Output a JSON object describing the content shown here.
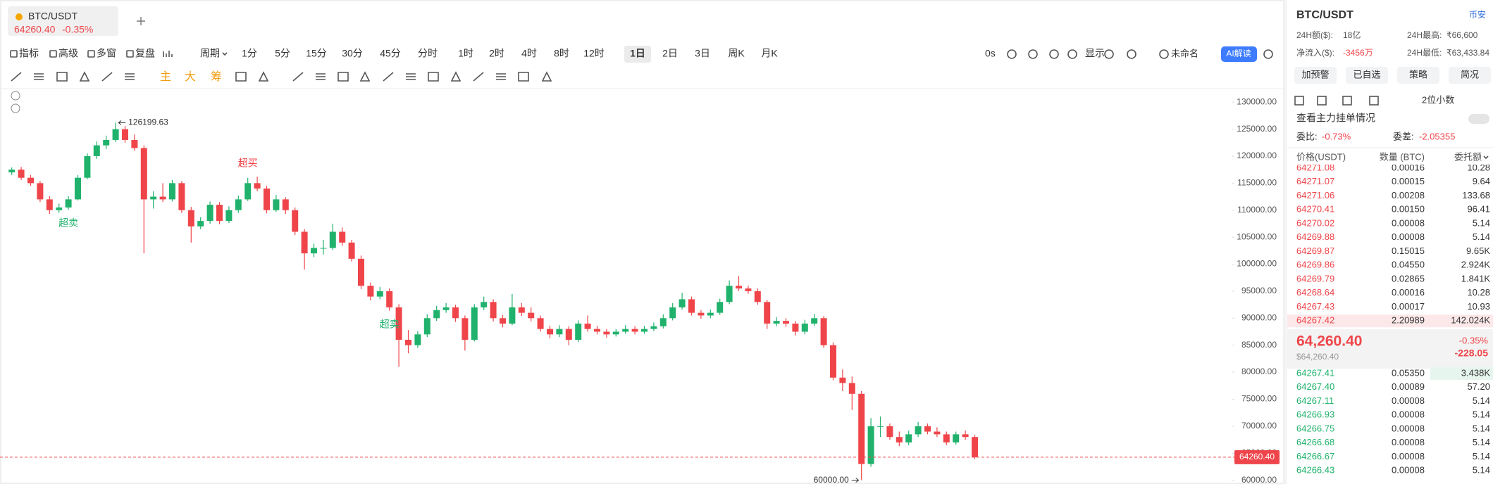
{
  "tab": {
    "symbol": "BTC/USDT",
    "price": "64260.40",
    "change": "-0.35%"
  },
  "toolbar": {
    "tools": [
      "指标",
      "高级",
      "多窗",
      "复盘"
    ],
    "period_label": "周期",
    "periods": [
      "1分",
      "5分",
      "15分",
      "30分",
      "45分",
      "分时",
      "1时",
      "2时",
      "4时",
      "8时",
      "12时",
      "1日",
      "2日",
      "3日",
      "周K",
      "月K"
    ],
    "active_period": 11,
    "timer": "0s",
    "display": "显示",
    "layout_name": "未命名",
    "ai": "AI解读",
    "indicators": [
      "主",
      "大",
      "筹"
    ]
  },
  "chart_data": {
    "type": "candlestick",
    "up_color": "#20b26c",
    "down_color": "#ef454a",
    "grid": false,
    "ylim": [
      59300,
      132500
    ],
    "yticks": [
      {
        "value": 60000,
        "label": "60000.00"
      },
      {
        "value": 65000,
        "label": "65000.00"
      },
      {
        "value": 70000,
        "label": "70000.00"
      },
      {
        "value": 75000,
        "label": "75000.00"
      },
      {
        "value": 80000,
        "label": "80000.00"
      },
      {
        "value": 85000,
        "label": "85000.00"
      },
      {
        "value": 90000,
        "label": "90000.00"
      },
      {
        "value": 95000,
        "label": "95000.00"
      },
      {
        "value": 100000,
        "label": "100000.00"
      },
      {
        "value": 105000,
        "label": "105000.00"
      },
      {
        "value": 110000,
        "label": "110000.00"
      },
      {
        "value": 115000,
        "label": "115000.00"
      },
      {
        "value": 120000,
        "label": "120000.00"
      },
      {
        "value": 125000,
        "label": "125000.00"
      },
      {
        "value": 130000,
        "label": "130000.00"
      }
    ],
    "candles": [
      [
        117000,
        117900,
        116500,
        117500
      ],
      [
        117500,
        118000,
        115600,
        116000
      ],
      [
        116000,
        116500,
        114500,
        115000
      ],
      [
        115000,
        115400,
        111500,
        112000
      ],
      [
        112000,
        112600,
        109300,
        110000
      ],
      [
        110000,
        111200,
        109500,
        110500
      ],
      [
        110500,
        112600,
        110100,
        112000
      ],
      [
        112000,
        116500,
        111800,
        116000
      ],
      [
        116000,
        120500,
        115700,
        120000
      ],
      [
        120000,
        122700,
        119500,
        122000
      ],
      [
        122000,
        123800,
        121300,
        123000
      ],
      [
        123000,
        126199.63,
        122600,
        125000
      ],
      [
        125000,
        125600,
        122500,
        123000
      ],
      [
        123000,
        124000,
        121000,
        121500
      ],
      [
        121500,
        122000,
        102000,
        112000
      ],
      [
        112000,
        113500,
        110300,
        112500
      ],
      [
        112500,
        115000,
        111500,
        112000
      ],
      [
        112000,
        115600,
        111600,
        115000
      ],
      [
        115000,
        115400,
        109500,
        110000
      ],
      [
        110000,
        110600,
        104000,
        107000
      ],
      [
        107000,
        108700,
        106500,
        108000
      ],
      [
        108000,
        111600,
        107500,
        111000
      ],
      [
        111000,
        111500,
        107400,
        108000
      ],
      [
        108000,
        110700,
        107600,
        110000
      ],
      [
        110000,
        112700,
        109500,
        112000
      ],
      [
        112000,
        116000,
        111700,
        115000
      ],
      [
        115000,
        116200,
        113500,
        114000
      ],
      [
        114000,
        114500,
        109400,
        110000
      ],
      [
        110000,
        112800,
        109700,
        112000
      ],
      [
        112000,
        112400,
        109300,
        110000
      ],
      [
        110000,
        110500,
        105400,
        106000
      ],
      [
        106000,
        106500,
        99000,
        102000
      ],
      [
        102000,
        103800,
        101300,
        103000
      ],
      [
        103000,
        104500,
        101800,
        103000
      ],
      [
        103000,
        107500,
        102600,
        106000
      ],
      [
        106000,
        106800,
        103400,
        104000
      ],
      [
        104000,
        104500,
        100500,
        101000
      ],
      [
        101000,
        101600,
        95400,
        96000
      ],
      [
        96000,
        96600,
        93300,
        94000
      ],
      [
        94000,
        95800,
        93500,
        95000
      ],
      [
        95000,
        95500,
        91400,
        92000
      ],
      [
        92000,
        92600,
        81000,
        86000
      ],
      [
        86000,
        87800,
        83500,
        85000
      ],
      [
        85000,
        87600,
        84500,
        87000
      ],
      [
        87000,
        90700,
        86500,
        90000
      ],
      [
        90000,
        92300,
        89500,
        91500
      ],
      [
        91500,
        92800,
        91000,
        92000
      ],
      [
        92000,
        92500,
        89300,
        90000
      ],
      [
        90000,
        90500,
        84000,
        86000
      ],
      [
        86000,
        92600,
        85700,
        92000
      ],
      [
        92000,
        94000,
        91500,
        93000
      ],
      [
        93000,
        93500,
        89400,
        90000
      ],
      [
        90000,
        90600,
        88300,
        89000
      ],
      [
        89000,
        94500,
        88700,
        92000
      ],
      [
        92000,
        92800,
        90400,
        91000
      ],
      [
        91000,
        92000,
        89400,
        90000
      ],
      [
        90000,
        90500,
        87500,
        88000
      ],
      [
        88000,
        88600,
        86300,
        87000
      ],
      [
        87000,
        88700,
        86500,
        88000
      ],
      [
        88000,
        88500,
        85000,
        86000
      ],
      [
        86000,
        89600,
        85600,
        89000
      ],
      [
        89000,
        90500,
        87500,
        88000
      ],
      [
        88000,
        88600,
        87000,
        87500
      ],
      [
        87500,
        88000,
        86400,
        87000
      ],
      [
        87000,
        88000,
        86600,
        87500
      ],
      [
        87500,
        88700,
        87100,
        88000
      ],
      [
        88000,
        88500,
        87000,
        87500
      ],
      [
        87500,
        88600,
        87100,
        88000
      ],
      [
        88000,
        89200,
        87600,
        88500
      ],
      [
        88500,
        90700,
        88100,
        90000
      ],
      [
        90000,
        92800,
        89600,
        92000
      ],
      [
        92000,
        94700,
        91600,
        93500
      ],
      [
        93500,
        94000,
        90500,
        91000
      ],
      [
        91000,
        91500,
        89900,
        90500
      ],
      [
        90500,
        91600,
        90000,
        91000
      ],
      [
        91000,
        93600,
        90600,
        93000
      ],
      [
        93000,
        97000,
        92600,
        96000
      ],
      [
        96000,
        97800,
        95000,
        95500
      ],
      [
        95500,
        96000,
        94500,
        95000
      ],
      [
        95000,
        95500,
        92500,
        93000
      ],
      [
        93000,
        93400,
        88000,
        89000
      ],
      [
        89000,
        90200,
        88500,
        89500
      ],
      [
        89500,
        90000,
        88400,
        89000
      ],
      [
        89000,
        89500,
        86800,
        87500
      ],
      [
        87500,
        89700,
        87000,
        89000
      ],
      [
        89000,
        90800,
        88600,
        90000
      ],
      [
        90000,
        90400,
        84500,
        85000
      ],
      [
        85000,
        85500,
        78500,
        79000
      ],
      [
        79000,
        80500,
        76500,
        78000
      ],
      [
        78000,
        79200,
        73000,
        76000
      ],
      [
        76000,
        76500,
        60000,
        63000
      ],
      [
        63000,
        71500,
        62500,
        70000
      ],
      [
        70000,
        71800,
        68000,
        70000
      ],
      [
        70000,
        70500,
        67500,
        68000
      ],
      [
        68000,
        69000,
        66300,
        67000
      ],
      [
        67000,
        69200,
        66500,
        68500
      ],
      [
        68500,
        70800,
        68000,
        70000
      ],
      [
        70000,
        70500,
        68500,
        69000
      ],
      [
        69000,
        69800,
        68000,
        68500
      ],
      [
        68500,
        69000,
        66500,
        67000
      ],
      [
        67000,
        69000,
        66600,
        68500
      ],
      [
        68500,
        69200,
        67500,
        68000
      ],
      [
        68000,
        68400,
        63900,
        64260.4
      ]
    ],
    "low_label": "60000.00",
    "last_label": "64260.40",
    "signals": [
      {
        "label": "超卖",
        "candle": 6,
        "color": "#20b26c"
      },
      {
        "label": "超买",
        "candle": 25,
        "color": "#ef454a"
      },
      {
        "label": "超卖",
        "candle": 40,
        "color": "#20b26c"
      }
    ]
  },
  "orderbook": {
    "symbol": "BTC/USDT",
    "exchange": "币安",
    "stats": [
      [
        "24H额($):",
        "18亿"
      ],
      [
        "24H最高:",
        "₹66,600"
      ],
      [
        "净流入($):",
        "-3456万"
      ],
      [
        "24H最低:",
        "₹63,433.84"
      ]
    ],
    "buttons": [
      "加预警",
      "已自选",
      "策略",
      "简况"
    ],
    "precision": "2位小数",
    "main_orders": "查看主力挂单情况",
    "ratio_label": "委比:",
    "ratio": "-0.73%",
    "diff_label": "委差:",
    "diff": "-2.05355",
    "columns": [
      "价格(USDT)",
      "数量 (BTC)",
      "委托额"
    ],
    "asks": [
      [
        "64271.08",
        "0.00016",
        "10.28"
      ],
      [
        "64271.07",
        "0.00015",
        "9.64"
      ],
      [
        "64271.06",
        "0.00208",
        "133.68"
      ],
      [
        "64270.41",
        "0.00150",
        "96.41"
      ],
      [
        "64270.02",
        "0.00008",
        "5.14"
      ],
      [
        "64269.88",
        "0.00008",
        "5.14"
      ],
      [
        "64269.87",
        "0.15015",
        "9.65K"
      ],
      [
        "64269.86",
        "0.04550",
        "2.924K"
      ],
      [
        "64269.79",
        "0.02865",
        "1.841K"
      ],
      [
        "64268.64",
        "0.00016",
        "10.28"
      ],
      [
        "64267.43",
        "0.00017",
        "10.93"
      ],
      [
        "64267.42",
        "2.20989",
        "142.024K"
      ]
    ],
    "mid": {
      "price": "64,260.40",
      "change": "-0.35%",
      "usd": "$64,260.40",
      "delta": "-228.05"
    },
    "bids": [
      [
        "64267.41",
        "0.05350",
        "3.438K"
      ],
      [
        "64267.40",
        "0.00089",
        "57.20"
      ],
      [
        "64267.11",
        "0.00008",
        "5.14"
      ],
      [
        "64266.93",
        "0.00008",
        "5.14"
      ],
      [
        "64266.75",
        "0.00008",
        "5.14"
      ],
      [
        "64266.68",
        "0.00008",
        "5.14"
      ],
      [
        "64266.67",
        "0.00008",
        "5.14"
      ],
      [
        "64266.43",
        "0.00008",
        "5.14"
      ]
    ]
  }
}
